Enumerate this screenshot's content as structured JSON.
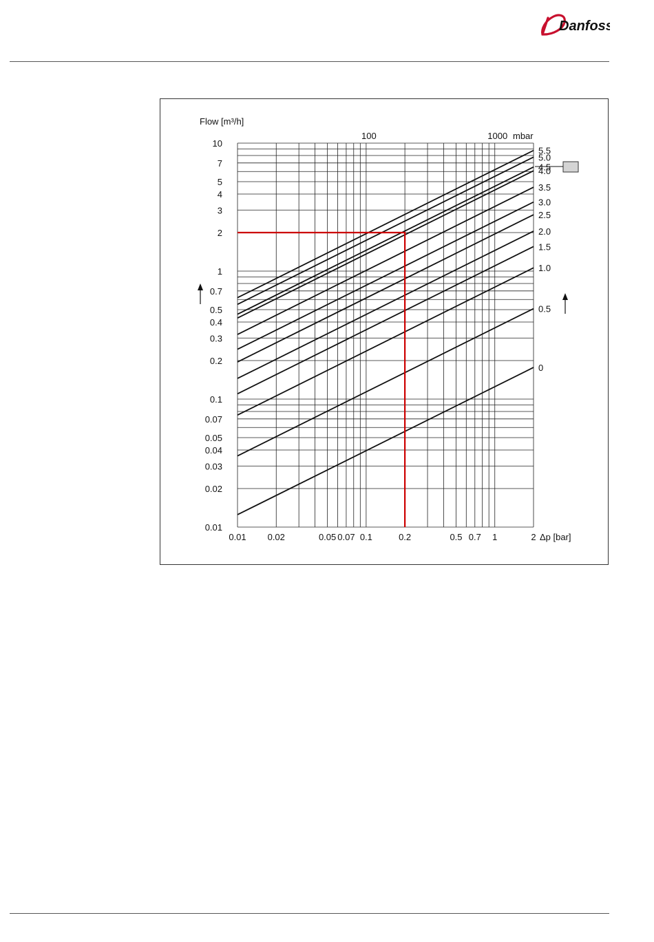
{
  "header": {
    "logo_text": "Danfoss"
  },
  "chart_data": {
    "type": "line",
    "title": "",
    "ylabel": "Flow [m³/h]",
    "xlabel": "Δp [bar]",
    "top_axis_unit": "mbar",
    "x_scale": "log",
    "y_scale": "log",
    "xlim": [
      0.01,
      2
    ],
    "ylim": [
      0.01,
      10
    ],
    "x_ticks": [
      {
        "v": 0.01,
        "label": "0.01"
      },
      {
        "v": 0.02,
        "label": "0.02"
      },
      {
        "v": 0.05,
        "label": "0.05"
      },
      {
        "v": 0.07,
        "label": "0.07"
      },
      {
        "v": 0.1,
        "label": "0.1"
      },
      {
        "v": 0.2,
        "label": "0.2"
      },
      {
        "v": 0.5,
        "label": "0.5"
      },
      {
        "v": 0.7,
        "label": "0.7"
      },
      {
        "v": 1,
        "label": "1"
      },
      {
        "v": 2,
        "label": "2"
      }
    ],
    "x_top_ticks": [
      {
        "v": 0.1,
        "label": "100"
      },
      {
        "v": 1,
        "label": "1000"
      }
    ],
    "x_gridlines": [
      0.01,
      0.02,
      0.03,
      0.04,
      0.05,
      0.06,
      0.07,
      0.08,
      0.09,
      0.1,
      0.2,
      0.3,
      0.4,
      0.5,
      0.6,
      0.7,
      0.8,
      0.9,
      1,
      2
    ],
    "y_ticks": [
      {
        "v": 10,
        "label": "10"
      },
      {
        "v": 7,
        "label": "7"
      },
      {
        "v": 5,
        "label": "5"
      },
      {
        "v": 4,
        "label": "4"
      },
      {
        "v": 3,
        "label": "3"
      },
      {
        "v": 2,
        "label": "2"
      },
      {
        "v": 1,
        "label": "1"
      },
      {
        "v": 0.7,
        "label": "0.7"
      },
      {
        "v": 0.5,
        "label": "0.5"
      },
      {
        "v": 0.4,
        "label": "0.4"
      },
      {
        "v": 0.3,
        "label": "0.3"
      },
      {
        "v": 0.2,
        "label": "0.2"
      },
      {
        "v": 0.1,
        "label": "0.1"
      },
      {
        "v": 0.07,
        "label": "0.07"
      },
      {
        "v": 0.05,
        "label": "0.05"
      },
      {
        "v": 0.04,
        "label": "0.04"
      },
      {
        "v": 0.03,
        "label": "0.03"
      },
      {
        "v": 0.02,
        "label": "0.02"
      },
      {
        "v": 0.01,
        "label": "0.01"
      }
    ],
    "y_gridlines": [
      0.01,
      0.02,
      0.03,
      0.04,
      0.05,
      0.06,
      0.07,
      0.08,
      0.09,
      0.1,
      0.2,
      0.3,
      0.4,
      0.5,
      0.6,
      0.7,
      0.8,
      0.9,
      1,
      2,
      3,
      4,
      5,
      6,
      7,
      8,
      9,
      10
    ],
    "series": [
      {
        "name": "0",
        "kv": 0.125
      },
      {
        "name": "0.5",
        "kv": 0.36
      },
      {
        "name": "1.0",
        "kv": 0.75
      },
      {
        "name": "1.5",
        "kv": 1.1
      },
      {
        "name": "2.0",
        "kv": 1.45
      },
      {
        "name": "2.5",
        "kv": 1.95
      },
      {
        "name": "3.0",
        "kv": 2.45
      },
      {
        "name": "3.5",
        "kv": 3.2
      },
      {
        "name": "4.0",
        "kv": 4.3
      },
      {
        "name": "4.5",
        "kv": 4.6
      },
      {
        "name": "5.0",
        "kv": 5.5
      },
      {
        "name": "5.5",
        "kv": 6.2
      }
    ],
    "example": {
      "dp": 0.2,
      "flow": 2,
      "color": "#cc0000"
    },
    "grid": true,
    "line_color": "#111111"
  }
}
